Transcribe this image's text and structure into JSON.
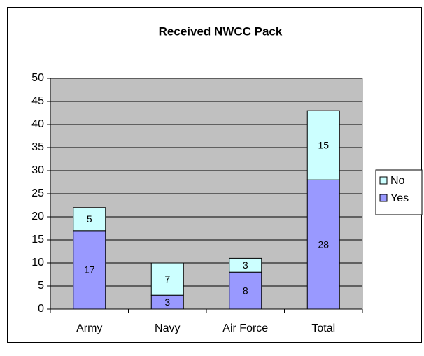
{
  "chart_data": {
    "type": "bar",
    "stacked": true,
    "title": "Received NWCC Pack",
    "categories": [
      "Army",
      "Navy",
      "Air Force",
      "Total"
    ],
    "series": [
      {
        "name": "Yes",
        "color": "#9999ff",
        "values": [
          17,
          3,
          8,
          28
        ]
      },
      {
        "name": "No",
        "color": "#ccffff",
        "values": [
          5,
          7,
          3,
          15
        ]
      }
    ],
    "ylim": [
      0,
      50
    ],
    "yticks": [
      0,
      5,
      10,
      15,
      20,
      25,
      30,
      35,
      40,
      45,
      50
    ],
    "grid": true,
    "legend": "right",
    "plot_background": "#c0c0c0"
  }
}
